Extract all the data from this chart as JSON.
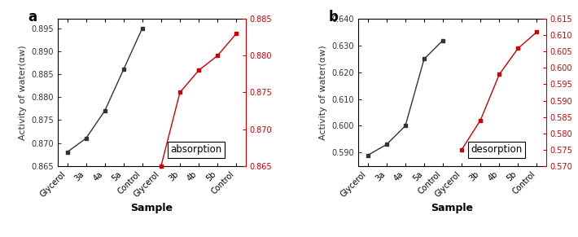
{
  "panel_a": {
    "title": "a",
    "xlabel": "Sample",
    "ylabel": "Activity of water(αw)",
    "black_x": [
      0,
      1,
      2,
      3,
      4
    ],
    "black_y": [
      0.868,
      0.871,
      0.877,
      0.886,
      0.895
    ],
    "black_labels": [
      "Glycerol",
      "3a",
      "4a",
      "5a",
      "Control"
    ],
    "red_x": [
      5,
      6,
      7,
      8,
      9
    ],
    "red_y": [
      0.865,
      0.875,
      0.878,
      0.88,
      0.883
    ],
    "red_labels": [
      "Glycerol",
      "3b",
      "4b",
      "5b",
      "Control"
    ],
    "ylim_left": [
      0.865,
      0.897
    ],
    "ylim_right": [
      0.865,
      0.885
    ],
    "yticks_left": [
      0.865,
      0.87,
      0.875,
      0.88,
      0.885,
      0.89,
      0.895
    ],
    "yticks_right": [
      0.865,
      0.87,
      0.875,
      0.88,
      0.885
    ],
    "annotation": "absorption",
    "black_color": "#333333",
    "red_color": "#cc0000"
  },
  "panel_b": {
    "title": "b",
    "xlabel": "Sample",
    "ylabel": "Activity of water(αw)",
    "black_x": [
      0,
      1,
      2,
      3,
      4
    ],
    "black_y": [
      0.589,
      0.593,
      0.6,
      0.625,
      0.632
    ],
    "black_labels": [
      "Glycerol",
      "3a",
      "4a",
      "5a",
      "Control"
    ],
    "red_x": [
      5,
      6,
      7,
      8,
      9
    ],
    "red_y": [
      0.575,
      0.584,
      0.598,
      0.606,
      0.611
    ],
    "red_labels": [
      "Glycerol",
      "3b",
      "4b",
      "5b",
      "Control"
    ],
    "ylim_left": [
      0.585,
      0.64
    ],
    "ylim_right": [
      0.57,
      0.615
    ],
    "yticks_left": [
      0.59,
      0.6,
      0.61,
      0.62,
      0.63,
      0.64
    ],
    "yticks_right": [
      0.57,
      0.575,
      0.58,
      0.585,
      0.59,
      0.595,
      0.6,
      0.605,
      0.61,
      0.615
    ],
    "annotation": "desorption",
    "black_color": "#333333",
    "red_color": "#cc0000"
  }
}
